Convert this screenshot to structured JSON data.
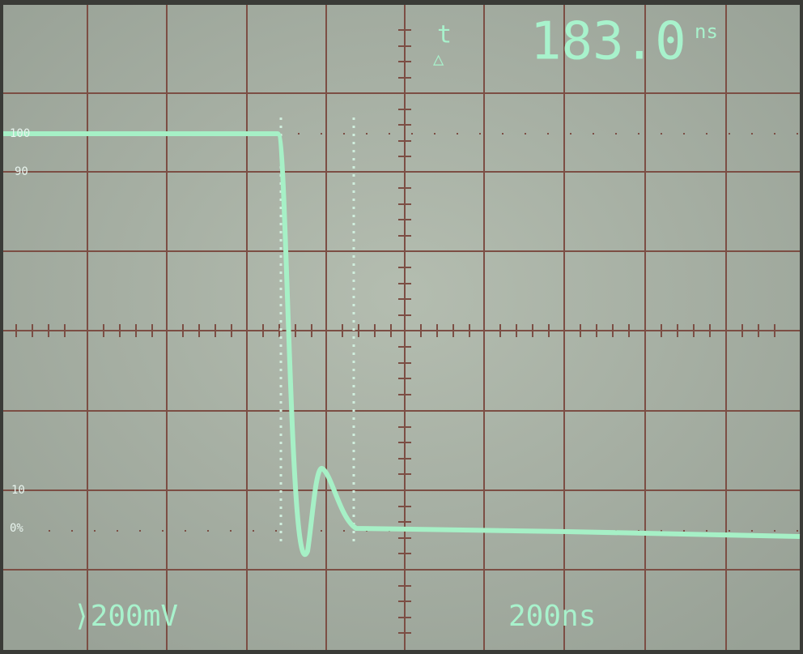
{
  "readout": {
    "t": "t",
    "delta": "△",
    "value": "183.0",
    "unit": "ns"
  },
  "graticule_labels": [
    "100",
    "90",
    "10",
    "0%"
  ],
  "footer": {
    "volts_per_div": "⟩200mV",
    "time_per_div": "200ns"
  }
}
